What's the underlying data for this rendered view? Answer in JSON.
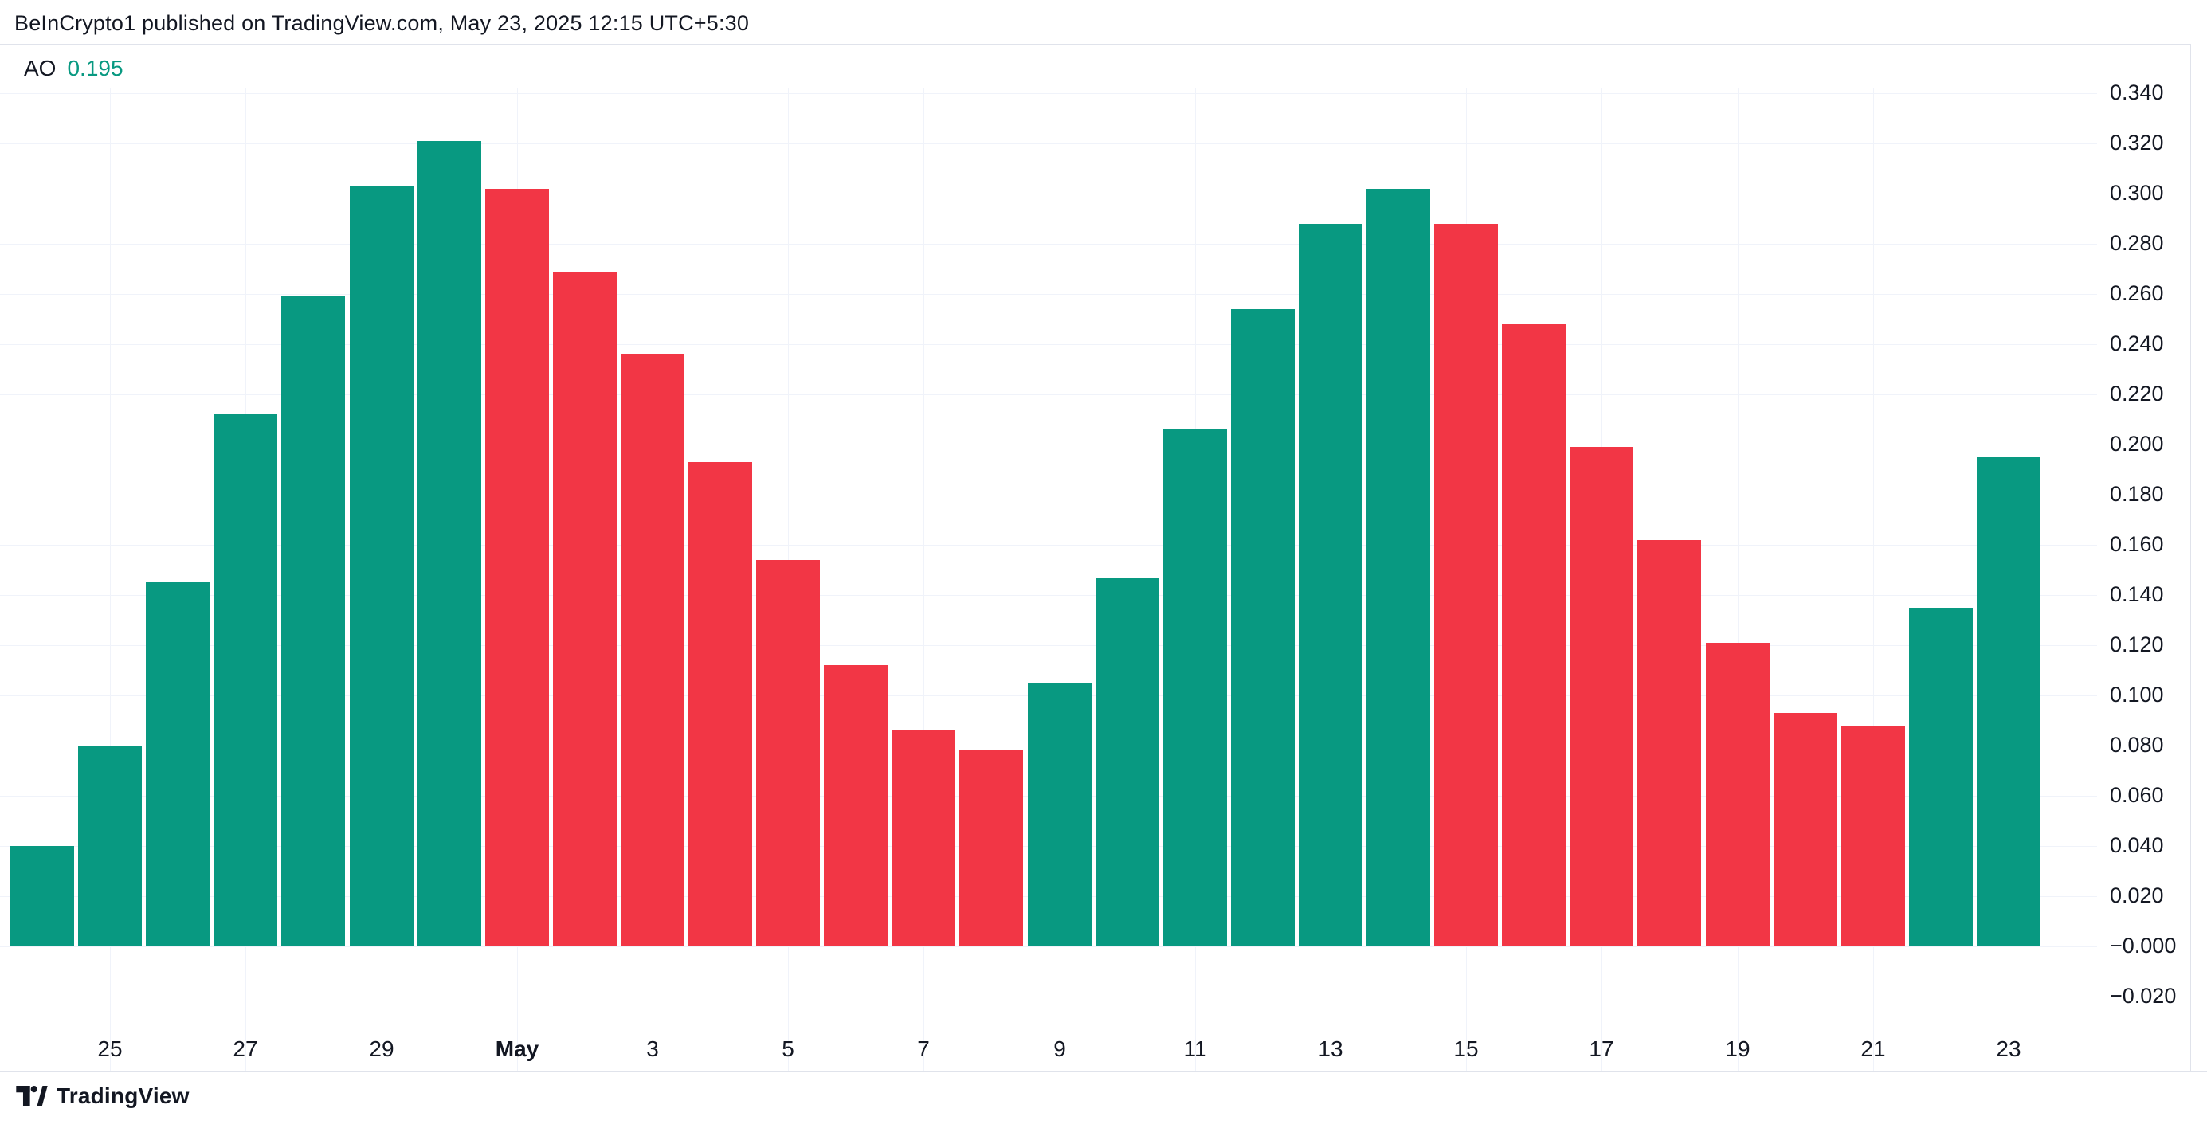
{
  "header": {
    "attribution": "BeInCrypto1 published on TradingView.com, May 23, 2025 12:15 UTC+5:30"
  },
  "legend": {
    "indicator": "AO",
    "value": "0.195"
  },
  "footer": {
    "logo_text": "TradingView"
  },
  "colors": {
    "up": "#089981",
    "down": "#f23645",
    "accent_value": "#089981",
    "text_dark": "#131722",
    "gridline": "#f0f3fa",
    "pane_border": "#e0e3eb",
    "background": "#ffffff"
  },
  "y_axis": {
    "tick_labels": [
      "0.340",
      "0.320",
      "0.300",
      "0.280",
      "0.260",
      "0.240",
      "0.220",
      "0.200",
      "0.180",
      "0.160",
      "0.140",
      "0.120",
      "0.100",
      "0.080",
      "0.060",
      "0.040",
      "0.020",
      "−0.000",
      "−0.020"
    ]
  },
  "x_axis": {
    "tick_labels": [
      "25",
      "27",
      "29",
      "May",
      "3",
      "5",
      "7",
      "9",
      "11",
      "13",
      "15",
      "17",
      "19",
      "21",
      "23"
    ],
    "bold_label": "May"
  },
  "chart_data": {
    "type": "bar",
    "title": "AO",
    "x": [
      "Apr 24",
      "Apr 25",
      "Apr 26",
      "Apr 27",
      "Apr 28",
      "Apr 29",
      "Apr 30",
      "May 1",
      "May 2",
      "May 3",
      "May 4",
      "May 5",
      "May 6",
      "May 7",
      "May 8",
      "May 9",
      "May 10",
      "May 11",
      "May 12",
      "May 13",
      "May 14",
      "May 15",
      "May 16",
      "May 17",
      "May 18",
      "May 19",
      "May 20",
      "May 21",
      "May 22",
      "May 23"
    ],
    "values": [
      0.04,
      0.08,
      0.145,
      0.212,
      0.259,
      0.303,
      0.321,
      0.302,
      0.269,
      0.236,
      0.193,
      0.154,
      0.112,
      0.086,
      0.078,
      0.105,
      0.147,
      0.206,
      0.254,
      0.288,
      0.302,
      0.288,
      0.248,
      0.199,
      0.162,
      0.121,
      0.093,
      0.088,
      0.135,
      0.195
    ],
    "directions": [
      "up",
      "up",
      "up",
      "up",
      "up",
      "up",
      "up",
      "down",
      "down",
      "down",
      "down",
      "down",
      "down",
      "down",
      "down",
      "up",
      "up",
      "up",
      "up",
      "up",
      "up",
      "down",
      "down",
      "down",
      "down",
      "down",
      "down",
      "down",
      "up",
      "up"
    ],
    "up_color": "#089981",
    "down_color": "#f23645",
    "y_ticks": [
      0.34,
      0.32,
      0.3,
      0.28,
      0.26,
      0.24,
      0.22,
      0.2,
      0.18,
      0.16,
      0.14,
      0.12,
      0.1,
      0.08,
      0.06,
      0.04,
      0.02,
      0.0,
      -0.02
    ],
    "ylim": [
      -0.03,
      0.355
    ],
    "grid": true,
    "legend_position": "top-left",
    "x_tick_indices": [
      1,
      3,
      5,
      7,
      9,
      11,
      13,
      15,
      17,
      19,
      21,
      23,
      25,
      27,
      29
    ],
    "x_tick_labels": [
      "25",
      "27",
      "29",
      "May",
      "3",
      "5",
      "7",
      "9",
      "11",
      "13",
      "15",
      "17",
      "19",
      "21",
      "23"
    ]
  }
}
